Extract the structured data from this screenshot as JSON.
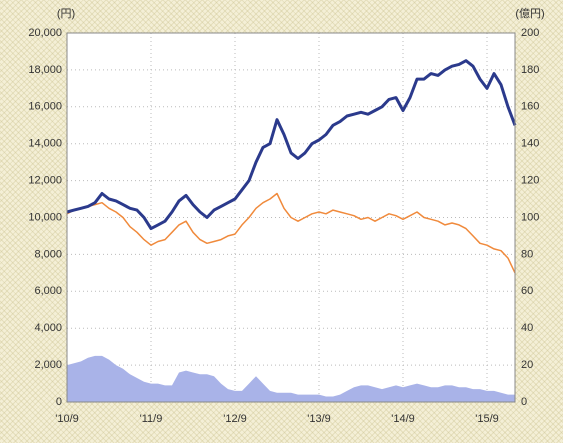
{
  "chart_data": {
    "type": "line",
    "y_unit": "(円)",
    "y2_unit": "(億円)",
    "categories": [
      "'10/9",
      null,
      null,
      null,
      null,
      null,
      null,
      null,
      null,
      null,
      null,
      null,
      "'11/9",
      null,
      null,
      null,
      null,
      null,
      null,
      null,
      null,
      null,
      null,
      null,
      "'12/9",
      null,
      null,
      null,
      null,
      null,
      null,
      null,
      null,
      null,
      null,
      null,
      "'13/9",
      null,
      null,
      null,
      null,
      null,
      null,
      null,
      null,
      null,
      null,
      null,
      "'14/9",
      null,
      null,
      null,
      null,
      null,
      null,
      null,
      null,
      null,
      null,
      null,
      "'15/9",
      null,
      null,
      null,
      null
    ],
    "series": [
      {
        "color": "#a9b3e8",
        "axis": "y2",
        "kind": "area",
        "values": [
          20,
          21,
          22,
          24,
          25,
          25,
          23,
          20,
          18,
          15,
          13,
          11,
          10,
          10,
          9,
          9,
          16,
          17,
          16,
          15,
          15,
          14,
          10,
          7,
          6,
          6,
          10,
          14,
          10,
          6,
          5,
          5,
          5,
          4,
          4,
          4,
          4,
          3,
          3,
          4,
          6,
          8,
          9,
          9,
          8,
          7,
          8,
          9,
          8,
          9,
          10,
          9,
          8,
          8,
          9,
          9,
          8,
          8,
          7,
          7,
          6,
          6,
          5,
          4,
          4
        ]
      },
      {
        "color": "#f08a3c",
        "values": [
          10200,
          10400,
          10500,
          10600,
          10700,
          10800,
          10500,
          10300,
          10000,
          9500,
          9200,
          8800,
          8500,
          8700,
          8800,
          9200,
          9600,
          9800,
          9200,
          8800,
          8600,
          8700,
          8800,
          9000,
          9100,
          9600,
          10000,
          10500,
          10800,
          11000,
          11300,
          10500,
          10000,
          9800,
          10000,
          10200,
          10300,
          10200,
          10400,
          10300,
          10200,
          10100,
          9900,
          10000,
          9800,
          10000,
          10200,
          10100,
          9900,
          10100,
          10300,
          10000,
          9900,
          9800,
          9600,
          9700,
          9600,
          9400,
          9000,
          8600,
          8500,
          8300,
          8200,
          7800,
          7000
        ]
      },
      {
        "color": "#2b3a8c",
        "values": [
          10300,
          10400,
          10500,
          10600,
          10800,
          11300,
          11000,
          10900,
          10700,
          10500,
          10400,
          10000,
          9400,
          9600,
          9800,
          10300,
          10900,
          11200,
          10700,
          10300,
          10000,
          10400,
          10600,
          10800,
          11000,
          11500,
          12000,
          13000,
          13800,
          14000,
          15300,
          14500,
          13500,
          13200,
          13500,
          14000,
          14200,
          14500,
          15000,
          15200,
          15500,
          15600,
          15700,
          15600,
          15800,
          16000,
          16400,
          16500,
          15800,
          16500,
          17500,
          17500,
          17800,
          17700,
          18000,
          18200,
          18300,
          18500,
          18200,
          17500,
          17000,
          17800,
          17200,
          16000,
          15000
        ]
      }
    ],
    "ylim": [
      0,
      20000
    ],
    "yticks": [
      0,
      {
        "value": 2000,
        "label": "2,000"
      },
      {
        "value": 4000,
        "label": "4,000"
      },
      {
        "value": 6000,
        "label": "6,000"
      },
      {
        "value": 8000,
        "label": "8,000"
      },
      {
        "value": 10000,
        "label": "10,000"
      },
      {
        "value": 12000,
        "label": "12,000"
      },
      {
        "value": 14000,
        "label": "14,000"
      },
      {
        "value": 16000,
        "label": "16,000"
      },
      {
        "value": 18000,
        "label": "18,000"
      },
      {
        "value": 20000,
        "label": "20,000"
      }
    ],
    "y2lim": [
      0,
      200
    ],
    "y2ticks": [
      0,
      20,
      40,
      60,
      80,
      100,
      120,
      140,
      160,
      180,
      200
    ],
    "grid": true
  }
}
